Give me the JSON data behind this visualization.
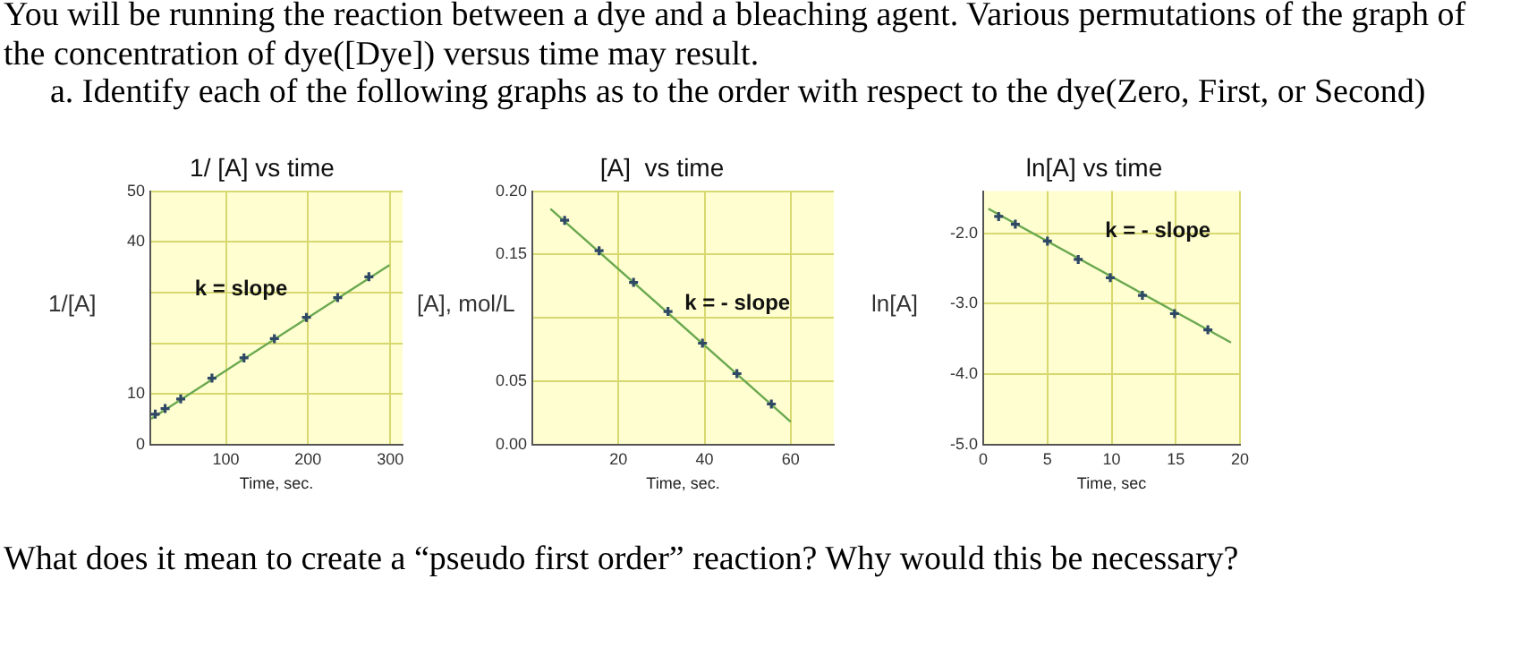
{
  "chart_data": [
    {
      "type": "other",
      "title": "You will be running the reaction between a dye and a bleaching agent. Various permutations of the graph of the concentration of dye([Dye]) versus time may result.",
      "annotations": [
        "a.  Identify each of the following graphs as to the order with respect to the dye(Zero, First, or Second)",
        "What does it mean to create a “pseudo first order” reaction? Why would this be necessary?"
      ]
    },
    {
      "type": "scatter",
      "title": "1/ [A] vs time",
      "xlabel": "Time, sec.",
      "ylabel": "1/[A]",
      "annotations": [
        "k = slope"
      ],
      "grid": true,
      "xlim": [
        8,
        315
      ],
      "xticks": [
        100,
        200,
        300
      ],
      "ylim": [
        0,
        50
      ],
      "yticks": [
        0,
        10,
        {
          "value": 20,
          "label": null
        },
        {
          "value": 30,
          "label": null
        },
        40,
        50
      ],
      "series": [
        {
          "color": "#2f4866",
          "marker": "cross",
          "x": [
            14,
            26,
            45,
            83,
            122,
            159,
            198,
            236,
            274
          ],
          "values": [
            6.0,
            7.1,
            9.0,
            13.1,
            17.1,
            20.9,
            25.1,
            29.0,
            33.1
          ]
        },
        {
          "type": "line",
          "marker": "none",
          "color": "#6aa84f",
          "x": [
            9,
            299
          ],
          "values": [
            5.1,
            35.4
          ]
        }
      ]
    },
    {
      "type": "scatter",
      "title": "[A]  vs time",
      "xlabel": "Time, sec.",
      "ylabel": "[A], mol/L",
      "annotations": [
        "k = - slope"
      ],
      "grid": true,
      "xlim": [
        0,
        70
      ],
      "xticks": [
        {
          "value": 0,
          "label": null
        },
        20,
        40,
        60
      ],
      "ylim": [
        0,
        0.2
      ],
      "yticks": [
        {
          "value": 0,
          "label": "0.00"
        },
        0.05,
        {
          "value": 0.1,
          "label": null
        },
        0.15,
        {
          "value": 0.2,
          "label": "0.20"
        }
      ],
      "series": [
        {
          "color": "#2f4866",
          "marker": "cross",
          "x": [
            7.5,
            15.5,
            23.5,
            31.5,
            39.5,
            47.5,
            55.5
          ],
          "values": [
            0.177,
            0.153,
            0.128,
            0.105,
            0.08,
            0.056,
            0.032
          ]
        },
        {
          "type": "line",
          "marker": "none",
          "color": "#6aa84f",
          "x": [
            4.2,
            60
          ],
          "values": [
            0.186,
            0.018
          ]
        }
      ]
    },
    {
      "type": "scatter",
      "title": "ln[A] vs time",
      "xlabel": "Time, sec",
      "ylabel": "ln[A]",
      "annotations": [
        "k = - slope"
      ],
      "grid": true,
      "xlim": [
        0,
        20
      ],
      "xticks": [
        0,
        5,
        10,
        15,
        20
      ],
      "ylim": [
        -5,
        -1.4
      ],
      "yticks": [
        {
          "value": -5,
          "label": "-5.0"
        },
        {
          "value": -4,
          "label": "-4.0"
        },
        {
          "value": -3,
          "label": "-3.0"
        },
        {
          "value": -2,
          "label": "-2.0"
        }
      ],
      "series": [
        {
          "color": "#2f4866",
          "marker": "cross",
          "x": [
            1.2,
            2.5,
            5.0,
            7.4,
            9.9,
            12.4,
            14.9,
            17.5
          ],
          "values": [
            -1.76,
            -1.87,
            -2.11,
            -2.37,
            -2.63,
            -2.88,
            -3.14,
            -3.37
          ]
        },
        {
          "type": "line",
          "marker": "none",
          "color": "#6aa84f",
          "x": [
            0.4,
            19.3
          ],
          "values": [
            -1.65,
            -3.55
          ]
        }
      ]
    }
  ]
}
